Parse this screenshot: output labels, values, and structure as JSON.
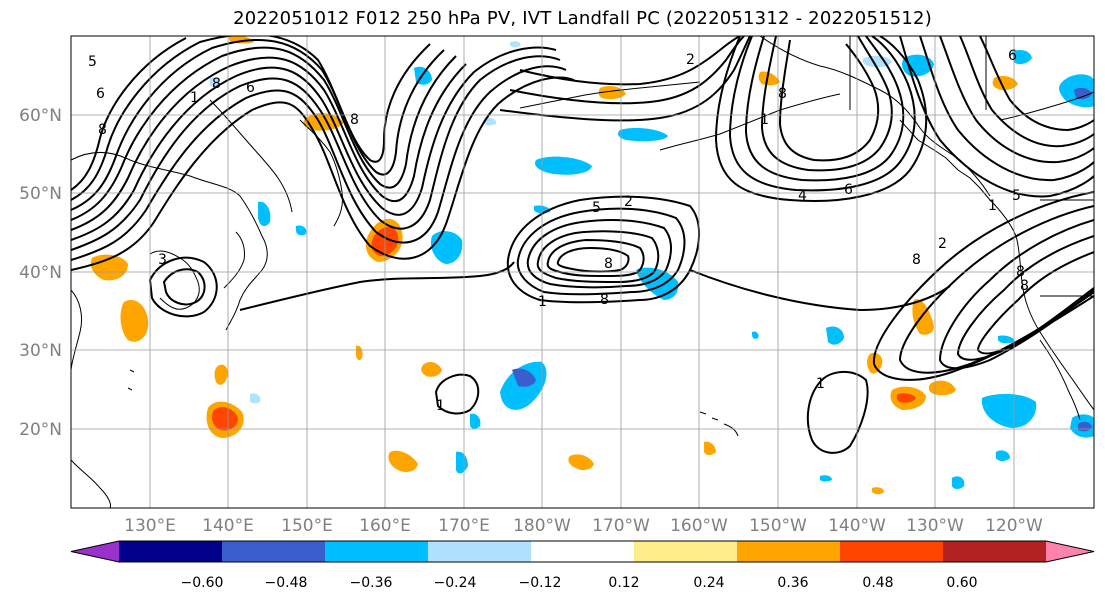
{
  "title": "2022051012 F012 250 hPa PV, IVT Landfall PC (2022051312 - 2022051512)",
  "lat_labels": [
    "60°N",
    "50°N",
    "40°N",
    "30°N",
    "20°N"
  ],
  "lon_labels": [
    "130°E",
    "140°E",
    "150°E",
    "160°E",
    "170°E",
    "180°W",
    "170°W",
    "160°W",
    "150°W",
    "140°W",
    "130°W",
    "120°W"
  ],
  "colorbar": {
    "ticks": [
      "−0.60",
      "−0.48",
      "−0.36",
      "−0.24",
      "−0.12",
      "0.12",
      "0.24",
      "0.36",
      "0.48",
      "0.60"
    ],
    "colors": [
      "#9932cc",
      "#00008b",
      "#3a5fcd",
      "#00bfff",
      "#b0e2ff",
      "#ffffff",
      "#ffec8b",
      "#ffa500",
      "#ff4500",
      "#b22222",
      "#ff82ab"
    ]
  },
  "contour_labels": [
    "5",
    "6",
    "8",
    "1",
    "8",
    "6",
    "8",
    "2",
    "8",
    "4",
    "6",
    "1",
    "8",
    "2",
    "1",
    "3",
    "8",
    "1",
    "5",
    "5",
    "2",
    "8",
    "1",
    "8",
    "6",
    "1",
    "8"
  ]
}
